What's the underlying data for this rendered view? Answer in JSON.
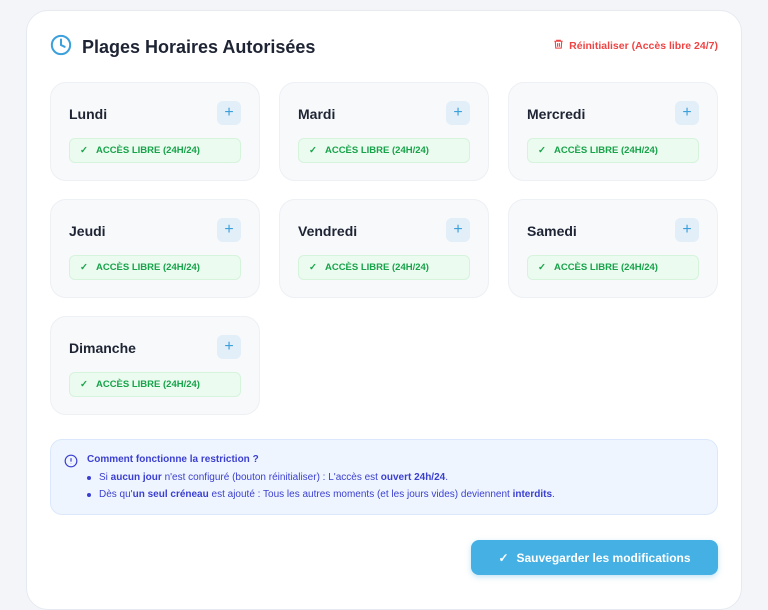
{
  "header": {
    "title": "Plages Horaires Autorisées",
    "reset_label": "Réinitialiser (Accès libre 24/7)"
  },
  "days": [
    {
      "label": "Lundi",
      "status": "ACCÈS LIBRE (24H/24)"
    },
    {
      "label": "Mardi",
      "status": "ACCÈS LIBRE (24H/24)"
    },
    {
      "label": "Mercredi",
      "status": "ACCÈS LIBRE (24H/24)"
    },
    {
      "label": "Jeudi",
      "status": "ACCÈS LIBRE (24H/24)"
    },
    {
      "label": "Vendredi",
      "status": "ACCÈS LIBRE (24H/24)"
    },
    {
      "label": "Samedi",
      "status": "ACCÈS LIBRE (24H/24)"
    },
    {
      "label": "Dimanche",
      "status": "ACCÈS LIBRE (24H/24)"
    }
  ],
  "info": {
    "title": "Comment fonctionne la restriction ?",
    "bullet1": [
      "Si ",
      "aucun jour",
      " n'est configuré (bouton réinitialiser) : L'accès est ",
      "ouvert 24h/24",
      "."
    ],
    "bullet2": [
      "Dès qu'",
      "un seul créneau",
      " est ajouté : Tous les autres moments (et les jours vides) deviennent ",
      "interdits",
      "."
    ]
  },
  "save_label": "Sauvegarder les modifications",
  "colors": {
    "accent": "#44b0e3",
    "danger": "#ef4444",
    "success": "#16a34a",
    "info": "#3b3fd0"
  }
}
